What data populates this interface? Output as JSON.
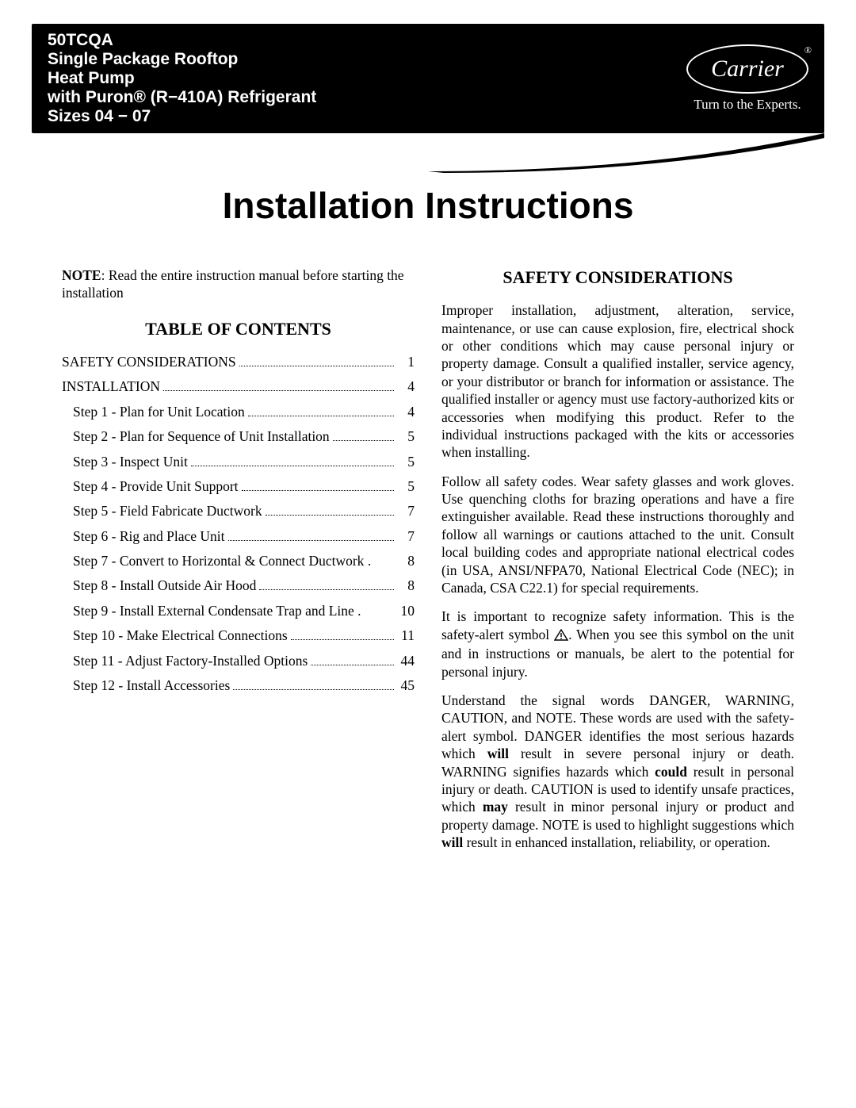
{
  "colors": {
    "band_bg": "#000000",
    "band_text": "#ffffff",
    "page_bg": "#ffffff",
    "text": "#000000"
  },
  "header": {
    "line1": "50TCQA",
    "line2": "Single Package Rooftop",
    "line3": "Heat Pump",
    "line4": "with Puron® (R−410A) Refrigerant",
    "line5": "Sizes 04 − 07",
    "logo_name": "Carrier",
    "logo_tag": "Turn to the Experts."
  },
  "title": "Installation Instructions",
  "note_label": "NOTE",
  "note_text": ": Read the entire instruction manual before starting the installation",
  "toc_heading": "TABLE OF CONTENTS",
  "toc": [
    {
      "label": "SAFETY CONSIDERATIONS",
      "page": "1",
      "sub": false
    },
    {
      "label": "INSTALLATION",
      "page": "4",
      "sub": false
    },
    {
      "label": "Step 1 - Plan for Unit Location",
      "page": "4",
      "sub": true
    },
    {
      "label": "Step 2 - Plan for Sequence of Unit Installation",
      "page": "5",
      "sub": true
    },
    {
      "label": "Step 3 - Inspect Unit",
      "page": "5",
      "sub": true
    },
    {
      "label": "Step 4 - Provide Unit Support",
      "page": "5",
      "sub": true
    },
    {
      "label": "Step 5 - Field Fabricate Ductwork",
      "page": "7",
      "sub": true
    },
    {
      "label": "Step 6 - Rig and Place Unit",
      "page": "7",
      "sub": true
    },
    {
      "label": "Step 7 - Convert to Horizontal & Connect Ductwork",
      "page": "8",
      "sub": true,
      "dots": false
    },
    {
      "label": "Step 8 - Install Outside Air Hood",
      "page": "8",
      "sub": true
    },
    {
      "label": "Step 9 - Install External Condensate Trap and Line",
      "page": "10",
      "sub": true,
      "dots": false
    },
    {
      "label": "Step 10 - Make Electrical Connections",
      "page": "11",
      "sub": true
    },
    {
      "label": "Step 11 - Adjust Factory-Installed Options",
      "page": "44",
      "sub": true
    },
    {
      "label": "Step 12 - Install Accessories",
      "page": "45",
      "sub": true
    }
  ],
  "safety_heading": "SAFETY CONSIDERATIONS",
  "safety_p1": "Improper installation, adjustment, alteration, service, maintenance, or use can cause explosion, fire, electrical shock or other conditions which may cause personal injury or property damage. Consult a qualified installer, service agency, or your distributor or branch for information or assistance. The qualified installer or agency must use factory-authorized kits or accessories when modifying this product. Refer to the individual instructions packaged with the kits or accessories when installing.",
  "safety_p2": "Follow all safety codes. Wear safety glasses and work gloves. Use quenching cloths for brazing operations and have a fire extinguisher available. Read these instructions thoroughly and follow all warnings or cautions attached to the unit. Consult local building codes and appropriate national electrical codes (in USA, ANSI/NFPA70, National Electrical Code (NEC); in Canada, CSA C22.1) for special requirements.",
  "safety_p3a": "It is important to recognize safety information. This is the safety-alert symbol ",
  "safety_p3b": ". When you see this symbol on the unit and in instructions or manuals, be alert to the potential for personal injury.",
  "safety_p4_pre": "Understand the signal words DANGER, WARNING, CAUTION, and NOTE. These words are used with the safety-alert symbol. DANGER identifies the most serious hazards which ",
  "safety_p4_b1": "will",
  "safety_p4_mid1": " result in severe personal injury or death. WARNING signifies hazards which ",
  "safety_p4_b2": "could",
  "safety_p4_mid2": " result in personal injury or death. CAUTION is used to identify unsafe practices, which ",
  "safety_p4_b3": "may",
  "safety_p4_mid3": " result in minor personal injury or product and property damage. NOTE is used to highlight suggestions which ",
  "safety_p4_b4": "will",
  "safety_p4_end": " result in enhanced installation, reliability, or operation."
}
